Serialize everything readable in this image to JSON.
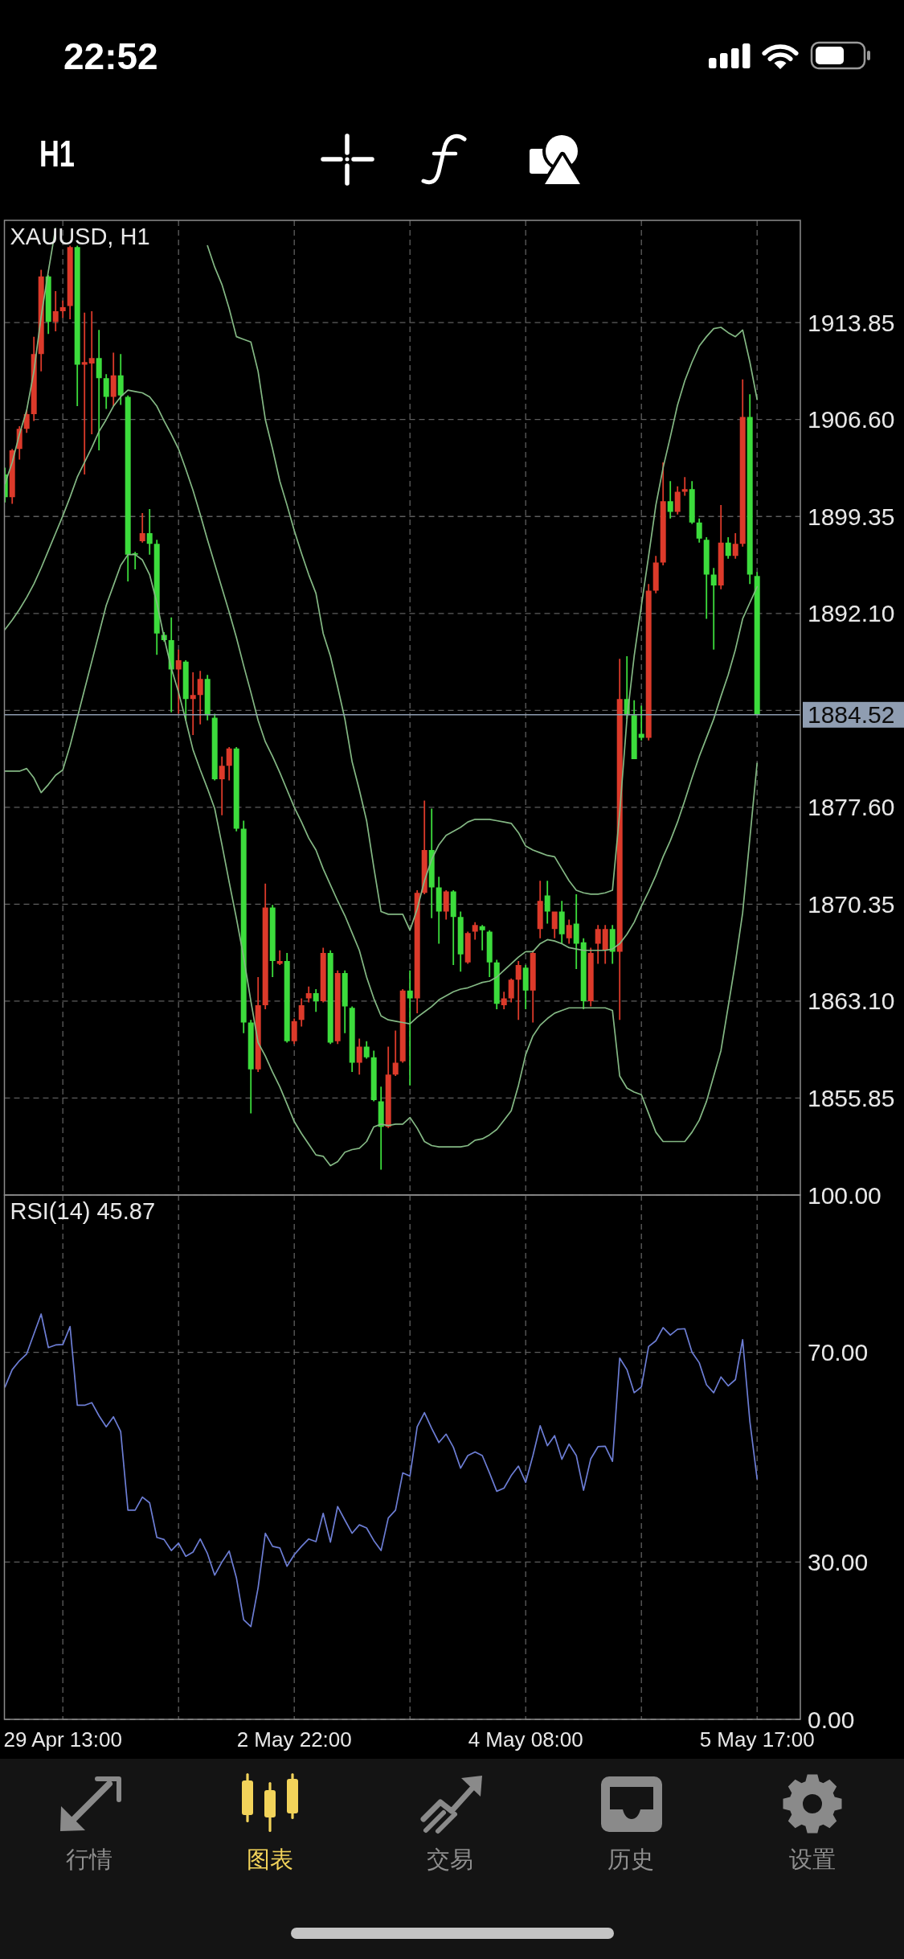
{
  "chart_data": [
    {
      "type": "candlestick",
      "title": "XAUUSD, H1",
      "categories": [
        null,
        null,
        null,
        null,
        null,
        null,
        null,
        null,
        null,
        null,
        null,
        null,
        null,
        null,
        null,
        null,
        null,
        null,
        null,
        null,
        null,
        null,
        null,
        null,
        null,
        null,
        null,
        null,
        null,
        null,
        null,
        null,
        null,
        null,
        null,
        null,
        null,
        null,
        null,
        null,
        null,
        null,
        null,
        null,
        null,
        null,
        null,
        null,
        null,
        null,
        null,
        null,
        null,
        null,
        null,
        null,
        null,
        null,
        null,
        null,
        null,
        null,
        null,
        null,
        null,
        null,
        null,
        null,
        null,
        null,
        null,
        null,
        null,
        null,
        null,
        null,
        null,
        null,
        null,
        null,
        null,
        null,
        null,
        null,
        null,
        null,
        null,
        null,
        null,
        null,
        null,
        null,
        null,
        null,
        null,
        null,
        null,
        null,
        null,
        null,
        null,
        null,
        null,
        null,
        null
      ],
      "ohlc": [
        [
          1902.5,
          1903.0,
          1900.4,
          1900.8
        ],
        [
          1900.8,
          1904.4,
          1900.3,
          1904.3
        ],
        [
          1904.4,
          1906.1,
          1903.6,
          1905.9
        ],
        [
          1905.9,
          1907.3,
          1905.6,
          1907.0
        ],
        [
          1907.0,
          1912.8,
          1906.5,
          1911.5
        ],
        [
          1911.5,
          1917.8,
          1910.2,
          1917.3
        ],
        [
          1917.3,
          1917.4,
          1913.0,
          1913.9
        ],
        [
          1913.9,
          1916.2,
          1913.2,
          1914.7
        ],
        [
          1914.7,
          1915.5,
          1914.2,
          1915.0
        ],
        [
          1915.1,
          1919.6,
          1914.1,
          1919.5
        ],
        [
          1919.5,
          1919.6,
          1907.6,
          1910.7
        ],
        [
          1910.7,
          1914.6,
          1902.5,
          1910.9
        ],
        [
          1910.8,
          1914.7,
          1905.5,
          1911.2
        ],
        [
          1911.2,
          1913.3,
          1904.3,
          1909.7
        ],
        [
          1909.7,
          1910.0,
          1907.4,
          1908.3
        ],
        [
          1908.3,
          1911.6,
          1907.6,
          1909.9
        ],
        [
          1909.9,
          1911.5,
          1907.7,
          1908.4
        ],
        [
          1908.3,
          1908.4,
          1894.5,
          1896.5
        ],
        [
          1896.6,
          1896.7,
          1895.4,
          1896.5
        ],
        [
          1897.5,
          1899.6,
          1897.4,
          1898.1
        ],
        [
          1898.1,
          1899.9,
          1896.5,
          1897.3
        ],
        [
          1897.3,
          1897.6,
          1889.0,
          1890.6
        ],
        [
          1890.5,
          1890.7,
          1890.0,
          1890.1
        ],
        [
          1890.1,
          1891.8,
          1884.7,
          1887.9
        ],
        [
          1887.9,
          1889.4,
          1884.6,
          1888.6
        ],
        [
          1888.5,
          1888.6,
          1884.1,
          1885.7
        ],
        [
          1885.7,
          1887.7,
          1883.0,
          1886.0
        ],
        [
          1886.0,
          1887.8,
          1883.8,
          1887.2
        ],
        [
          1887.2,
          1887.5,
          1884.1,
          1884.5
        ],
        [
          1884.3,
          1884.6,
          1879.6,
          1879.7
        ],
        [
          1879.7,
          1881.4,
          1877.0,
          1880.7
        ],
        [
          1880.7,
          1882.1,
          1879.6,
          1882.0
        ],
        [
          1882.0,
          1882.1,
          1875.8,
          1876.0
        ],
        [
          1876.0,
          1876.6,
          1860.7,
          1861.5
        ],
        [
          1861.5,
          1861.7,
          1854.7,
          1858.0
        ],
        [
          1858.0,
          1864.9,
          1857.8,
          1862.8
        ],
        [
          1862.8,
          1871.9,
          1862.5,
          1870.1
        ],
        [
          1870.1,
          1870.3,
          1864.9,
          1866.1
        ],
        [
          1865.9,
          1866.9,
          1865.8,
          1866.1
        ],
        [
          1866.1,
          1866.7,
          1860.0,
          1860.1
        ],
        [
          1860.1,
          1861.8,
          1859.9,
          1861.6
        ],
        [
          1861.7,
          1863.3,
          1861.2,
          1862.8
        ],
        [
          1863.3,
          1864.2,
          1863.0,
          1863.7
        ],
        [
          1863.7,
          1864.0,
          1862.3,
          1863.1
        ],
        [
          1863.1,
          1867.1,
          1863.0,
          1866.7
        ],
        [
          1866.7,
          1866.9,
          1859.9,
          1860.0
        ],
        [
          1860.1,
          1865.4,
          1859.9,
          1865.2
        ],
        [
          1865.2,
          1865.4,
          1860.7,
          1862.7
        ],
        [
          1862.6,
          1862.7,
          1857.8,
          1858.5
        ],
        [
          1858.5,
          1860.3,
          1857.6,
          1859.7
        ],
        [
          1859.7,
          1860.1,
          1858.8,
          1858.9
        ],
        [
          1858.9,
          1859.4,
          1855.6,
          1855.7
        ],
        [
          1855.6,
          1856.7,
          1850.5,
          1853.7
        ],
        [
          1853.7,
          1859.7,
          1853.6,
          1857.6
        ],
        [
          1857.6,
          1860.9,
          1857.5,
          1858.5
        ],
        [
          1858.6,
          1864.0,
          1858.5,
          1863.9
        ],
        [
          1863.9,
          1865.4,
          1856.8,
          1863.3
        ],
        [
          1863.3,
          1871.4,
          1862.2,
          1871.2
        ],
        [
          1871.2,
          1878.1,
          1871.1,
          1874.4
        ],
        [
          1874.4,
          1877.5,
          1869.3,
          1871.6
        ],
        [
          1871.6,
          1872.4,
          1867.4,
          1869.8
        ],
        [
          1869.8,
          1871.4,
          1869.2,
          1871.3
        ],
        [
          1871.3,
          1871.4,
          1865.8,
          1869.4
        ],
        [
          1869.4,
          1869.8,
          1865.3,
          1866.6
        ],
        [
          1866.0,
          1868.3,
          1865.9,
          1868.2
        ],
        [
          1868.3,
          1869.0,
          1867.7,
          1868.8
        ],
        [
          1868.7,
          1868.8,
          1866.9,
          1868.4
        ],
        [
          1868.3,
          1868.4,
          1864.9,
          1866.0
        ],
        [
          1866.0,
          1866.2,
          1862.5,
          1862.9
        ],
        [
          1862.8,
          1863.8,
          1862.5,
          1863.3
        ],
        [
          1863.3,
          1864.8,
          1863.0,
          1864.7
        ],
        [
          1864.7,
          1866.1,
          1861.7,
          1865.8
        ],
        [
          1865.6,
          1865.8,
          1862.5,
          1863.9
        ],
        [
          1863.9,
          1866.9,
          1861.5,
          1866.7
        ],
        [
          1868.5,
          1872.1,
          1867.8,
          1870.6
        ],
        [
          1871.0,
          1872.1,
          1868.9,
          1869.8
        ],
        [
          1868.5,
          1869.8,
          1867.8,
          1869.8
        ],
        [
          1869.8,
          1870.6,
          1867.4,
          1868.1
        ],
        [
          1867.8,
          1869.2,
          1867.4,
          1868.8
        ],
        [
          1868.9,
          1871.1,
          1865.5,
          1867.4
        ],
        [
          1867.5,
          1867.8,
          1862.5,
          1863.1
        ],
        [
          1863.1,
          1867.1,
          1862.7,
          1866.7
        ],
        [
          1867.4,
          1868.8,
          1865.9,
          1868.5
        ],
        [
          1866.9,
          1868.8,
          1865.9,
          1868.5
        ],
        [
          1868.5,
          1868.8,
          1865.9,
          1866.8
        ],
        [
          1866.8,
          1888.7,
          1861.7,
          1885.7
        ],
        [
          1885.7,
          1888.9,
          1884.2,
          1884.5
        ],
        [
          1884.5,
          1885.6,
          1881.2,
          1881.2
        ],
        [
          1883.1,
          1885.2,
          1882.6,
          1882.8
        ],
        [
          1882.8,
          1894.3,
          1882.6,
          1893.8
        ],
        [
          1893.8,
          1896.4,
          1893.6,
          1895.9
        ],
        [
          1895.9,
          1903.4,
          1895.7,
          1900.5
        ],
        [
          1900.5,
          1902.0,
          1899.2,
          1899.7
        ],
        [
          1899.7,
          1901.6,
          1899.5,
          1901.2
        ],
        [
          1901.2,
          1902.3,
          1900.9,
          1901.4
        ],
        [
          1901.4,
          1902.0,
          1898.8,
          1898.9
        ],
        [
          1898.9,
          1899.2,
          1897.4,
          1897.7
        ],
        [
          1897.6,
          1897.8,
          1891.7,
          1895.0
        ],
        [
          1895.0,
          1895.5,
          1889.4,
          1894.2
        ],
        [
          1894.2,
          1900.2,
          1893.9,
          1897.4
        ],
        [
          1897.4,
          1897.8,
          1896.2,
          1896.4
        ],
        [
          1896.4,
          1898.1,
          1896.2,
          1897.3
        ],
        [
          1897.3,
          1909.6,
          1897.1,
          1906.8
        ],
        [
          1906.8,
          1908.5,
          1894.3,
          1895.0
        ],
        [
          1894.9,
          1895.2,
          1884.5,
          1884.52
        ]
      ],
      "colors": [
        "#3cdc3c",
        "#dc3a2a",
        "#dc3a2a",
        "#dc3a2a",
        "#dc3a2a",
        "#dc3a2a",
        "#3cdc3c",
        "#dc3a2a",
        "#dc3a2a",
        "#dc3a2a",
        "#3cdc3c",
        "#dc3a2a",
        "#dc3a2a",
        "#3cdc3c",
        "#3cdc3c",
        "#dc3a2a",
        "#3cdc3c",
        "#3cdc3c",
        "#3cdc3c",
        "#dc3a2a",
        "#3cdc3c",
        "#3cdc3c",
        "#3cdc3c",
        "#3cdc3c",
        "#dc3a2a",
        "#3cdc3c",
        "#dc3a2a",
        "#dc3a2a",
        "#3cdc3c",
        "#3cdc3c",
        "#dc3a2a",
        "#dc3a2a",
        "#3cdc3c",
        "#3cdc3c",
        "#3cdc3c",
        "#dc3a2a",
        "#dc3a2a",
        "#3cdc3c",
        "#dc3a2a",
        "#3cdc3c",
        "#dc3a2a",
        "#dc3a2a",
        "#dc3a2a",
        "#3cdc3c",
        "#dc3a2a",
        "#3cdc3c",
        "#dc3a2a",
        "#3cdc3c",
        "#3cdc3c",
        "#dc3a2a",
        "#3cdc3c",
        "#3cdc3c",
        "#3cdc3c",
        "#dc3a2a",
        "#dc3a2a",
        "#dc3a2a",
        "#3cdc3c",
        "#dc3a2a",
        "#dc3a2a",
        "#3cdc3c",
        "#3cdc3c",
        "#dc3a2a",
        "#3cdc3c",
        "#3cdc3c",
        "#dc3a2a",
        "#dc3a2a",
        "#3cdc3c",
        "#3cdc3c",
        "#3cdc3c",
        "#dc3a2a",
        "#dc3a2a",
        "#dc3a2a",
        "#3cdc3c",
        "#dc3a2a",
        "#dc3a2a",
        "#3cdc3c",
        "#dc3a2a",
        "#3cdc3c",
        "#dc3a2a",
        "#3cdc3c",
        "#3cdc3c",
        "#dc3a2a",
        "#dc3a2a",
        "#dc3a2a",
        "#3cdc3c",
        "#dc3a2a",
        "#3cdc3c",
        "#3cdc3c",
        "#3cdc3c",
        "#dc3a2a",
        "#dc3a2a",
        "#dc3a2a",
        "#3cdc3c",
        "#dc3a2a",
        "#dc3a2a",
        "#3cdc3c",
        "#3cdc3c",
        "#3cdc3c",
        "#3cdc3c",
        "#dc3a2a",
        "#3cdc3c",
        "#dc3a2a",
        "#dc3a2a",
        "#3cdc3c",
        "#3cdc3c"
      ],
      "series": [
        {
          "type": "line",
          "color": "#84b884",
          "values": [
            1901.8,
            1903.4,
            1905.5,
            1907.3,
            1910.2,
            1914.3,
            1917.7,
            1920.9,
            null,
            null,
            null,
            null,
            null,
            null,
            null,
            null,
            null,
            null,
            null,
            null,
            null,
            null,
            null,
            null,
            null,
            null,
            null,
            null,
            1919.6,
            1918.0,
            1916.7,
            1914.9,
            1912.8,
            1912.6,
            1912.4,
            1910.2,
            1906.6,
            1904.4,
            1902.0,
            1900.2,
            1898.3,
            1896.6,
            1895.0,
            1893.6,
            1890.6,
            1888.9,
            1886.6,
            1884.2,
            1881.0,
            1878.9,
            1876.6,
            1873.1,
            1869.8,
            1869.6,
            1869.6,
            1869.6,
            1868.4,
            1870.0,
            1872.1,
            1873.7,
            1874.8,
            1875.5,
            1875.8,
            1876.1,
            1876.5,
            1876.7,
            1876.7,
            1876.7,
            1876.6,
            1876.5,
            1876.4,
            1875.7,
            1874.7,
            1874.4,
            1874.2,
            1874.0,
            1873.9,
            1873.0,
            1872.1,
            1871.4,
            1871.2,
            1871.1,
            1871.1,
            1871.2,
            1871.4,
            1877.2,
            1884.2,
            1888.9,
            1892.7,
            1896.4,
            1900.2,
            1903.0,
            1905.3,
            1907.7,
            1909.5,
            1910.9,
            1912.1,
            1912.8,
            1913.4,
            1913.5,
            1913.1,
            1912.8,
            1913.3,
            1910.9,
            1908.1
          ]
        },
        {
          "type": "line",
          "color": "#84b884",
          "values": [
            1890.9,
            1891.6,
            1892.4,
            1893.3,
            1894.3,
            1895.5,
            1896.8,
            1898.1,
            1899.4,
            1900.8,
            1902.3,
            1903.4,
            1904.5,
            1905.7,
            1906.6,
            1907.6,
            1908.3,
            1908.8,
            1908.7,
            1908.6,
            1908.3,
            1907.6,
            1906.5,
            1905.5,
            1904.4,
            1902.9,
            1901.3,
            1899.5,
            1897.6,
            1895.8,
            1894.0,
            1892.2,
            1890.3,
            1888.2,
            1886.2,
            1884.1,
            1882.5,
            1881.4,
            1880.2,
            1878.9,
            1877.6,
            1876.5,
            1875.3,
            1874.4,
            1873.0,
            1871.8,
            1870.6,
            1869.5,
            1868.2,
            1866.9,
            1864.9,
            1863.3,
            1862.0,
            1861.7,
            1861.6,
            1861.5,
            1861.4,
            1861.9,
            1862.3,
            1862.7,
            1863.2,
            1863.5,
            1863.8,
            1864.0,
            1864.1,
            1864.3,
            1864.5,
            1864.6,
            1864.9,
            1865.4,
            1865.9,
            1866.4,
            1866.8,
            1866.8,
            1867.4,
            1867.7,
            1867.6,
            1867.4,
            1867.1,
            1867.0,
            1866.9,
            1866.9,
            1866.9,
            1866.9,
            1867.0,
            1867.4,
            1868.1,
            1869.0,
            1870.2,
            1871.3,
            1872.5,
            1873.9,
            1875.1,
            1876.5,
            1878.1,
            1879.8,
            1881.4,
            1882.8,
            1884.2,
            1885.9,
            1887.5,
            1889.4,
            1891.7,
            1892.9,
            1894.1
          ]
        },
        {
          "type": "line",
          "color": "#84b884",
          "values": [
            1880.3,
            1880.3,
            1880.3,
            1880.5,
            1879.8,
            1878.7,
            1879.3,
            1880.0,
            1880.4,
            1882.2,
            1884.3,
            1886.4,
            1888.5,
            1890.6,
            1892.7,
            1894.2,
            1895.7,
            1896.5,
            1896.5,
            1896.1,
            1895.0,
            1892.9,
            1890.3,
            1888.0,
            1886.2,
            1884.1,
            1881.9,
            1880.4,
            1879.0,
            1877.5,
            1874.8,
            1872.0,
            1869.3,
            1866.4,
            1863.1,
            1860.0,
            1859.0,
            1857.8,
            1856.7,
            1855.4,
            1854.1,
            1853.2,
            1852.4,
            1851.6,
            1851.5,
            1850.8,
            1851.1,
            1851.8,
            1852.0,
            1852.1,
            1852.6,
            1853.7,
            1853.9,
            1853.8,
            1853.9,
            1853.9,
            1854.4,
            1853.6,
            1852.6,
            1852.3,
            1852.2,
            1852.2,
            1852.2,
            1852.2,
            1852.3,
            1852.7,
            1852.8,
            1853.1,
            1853.5,
            1854.2,
            1854.9,
            1856.8,
            1859.1,
            1860.5,
            1861.3,
            1861.8,
            1862.2,
            1862.4,
            1862.6,
            1862.6,
            1862.6,
            1862.6,
            1862.6,
            1862.6,
            1862.4,
            1857.5,
            1856.6,
            1856.3,
            1856.1,
            1854.7,
            1853.3,
            1852.6,
            1852.6,
            1852.6,
            1852.6,
            1853.3,
            1854.2,
            1855.6,
            1857.5,
            1859.4,
            1862.7,
            1866.0,
            1869.7,
            1875.3,
            1880.9
          ]
        }
      ],
      "ylim": [
        1848.6,
        1921.5
      ],
      "yticks": [
        1855.85,
        {
          "value": 1863.1,
          "label": "1863.10"
        },
        1870.35,
        {
          "value": 1877.6,
          "label": "1877.60"
        },
        {
          "value": 1884.85,
          "label": null
        },
        {
          "value": 1892.1,
          "label": "1892.10"
        },
        1899.35,
        {
          "value": 1906.6,
          "label": "1906.60"
        },
        1913.85
      ],
      "ref_lines": [
        {
          "axis": "y",
          "value": 1884.52,
          "label": "1884.52",
          "color": "#8f9db1"
        }
      ],
      "grid": true,
      "tick_labels": "y",
      "annotations": [
        "22:52",
        "H1",
        "行情",
        "图表",
        "交易",
        "历史",
        "设置"
      ]
    },
    {
      "type": "line",
      "title": "RSI(14) 45.87",
      "categories": [
        null,
        null,
        null,
        null,
        null,
        null,
        null,
        null,
        "29 Apr 13:00",
        null,
        null,
        null,
        null,
        null,
        null,
        null,
        null,
        null,
        null,
        null,
        null,
        null,
        null,
        null,
        null,
        null,
        null,
        null,
        null,
        null,
        null,
        null,
        null,
        null,
        null,
        null,
        null,
        null,
        null,
        null,
        "2 May 22:00",
        null,
        null,
        null,
        null,
        null,
        null,
        null,
        null,
        null,
        null,
        null,
        null,
        null,
        null,
        null,
        null,
        null,
        null,
        null,
        null,
        null,
        null,
        null,
        null,
        null,
        null,
        null,
        null,
        null,
        null,
        null,
        "4 May 08:00",
        null,
        null,
        null,
        null,
        null,
        null,
        null,
        null,
        null,
        null,
        null,
        null,
        null,
        null,
        null,
        null,
        null,
        null,
        null,
        null,
        null,
        null,
        null,
        null,
        null,
        null,
        null,
        null,
        null,
        null,
        null,
        "5 May 17:00"
      ],
      "series": [
        {
          "color": "#6c7dd4",
          "values": [
            63.4,
            66.7,
            68.4,
            69.7,
            73.5,
            77.3,
            70.9,
            71.4,
            71.5,
            74.9,
            59.9,
            59.9,
            60.4,
            57.9,
            55.8,
            57.7,
            54.9,
            39.9,
            39.9,
            42.4,
            41.3,
            34.7,
            34.3,
            32.2,
            33.6,
            31.1,
            31.9,
            34.4,
            31.6,
            27.5,
            30.0,
            32.1,
            27.0,
            19.0,
            17.7,
            25.1,
            35.5,
            33.0,
            32.7,
            29.2,
            31.4,
            33.0,
            34.4,
            33.9,
            39.3,
            33.8,
            40.6,
            38.0,
            35.5,
            37.1,
            36.5,
            34.1,
            32.2,
            38.4,
            39.9,
            47.0,
            46.4,
            55.8,
            58.5,
            55.5,
            52.8,
            54.4,
            51.9,
            47.9,
            50.3,
            51.0,
            50.3,
            47.0,
            43.5,
            44.1,
            46.5,
            48.3,
            45.2,
            50.3,
            56.0,
            52.2,
            54.1,
            49.6,
            52.5,
            50.3,
            43.7,
            49.7,
            52.0,
            52.1,
            49.2,
            68.9,
            66.7,
            62.3,
            63.4,
            71.1,
            72.2,
            74.7,
            73.3,
            74.4,
            74.5,
            70.0,
            68.0,
            63.8,
            62.3,
            65.3,
            63.6,
            64.8,
            72.4,
            56.8,
            45.87
          ]
        }
      ],
      "ylim": [
        0,
        100
      ],
      "yticks": [
        {
          "value": 0,
          "label": "0.00"
        },
        {
          "value": 30,
          "label": "30.00"
        },
        {
          "value": 70,
          "label": "70.00"
        },
        {
          "value": 100,
          "label": "100.00"
        }
      ],
      "grid": true
    }
  ]
}
